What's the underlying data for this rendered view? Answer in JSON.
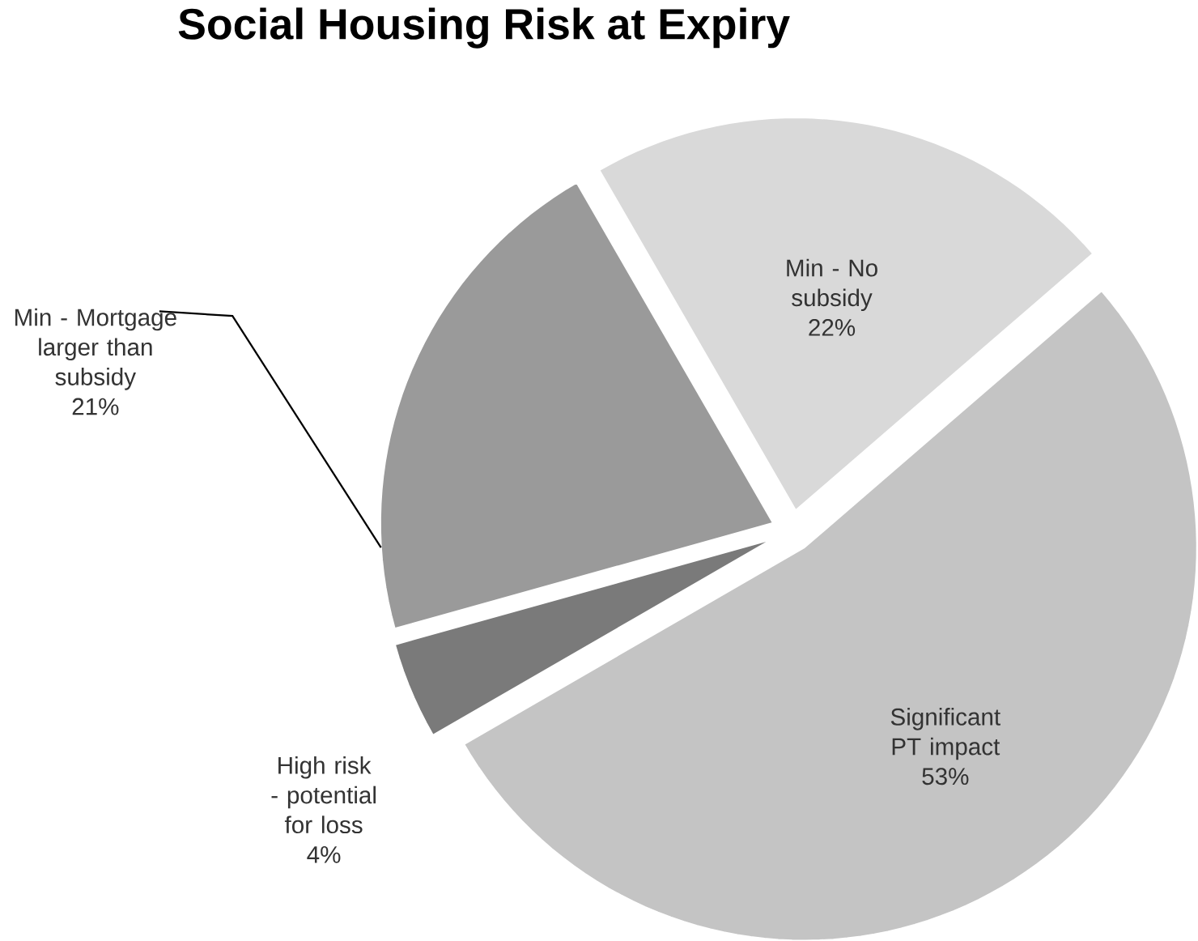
{
  "chart_data": {
    "type": "pie",
    "title": "Social Housing Risk at Expiry",
    "categories": [
      "Min - No subsidy",
      "Significant PT impact",
      "High risk - potential for loss",
      "Min - Mortgage larger than subsidy"
    ],
    "values": [
      22,
      53,
      4,
      21
    ],
    "value_labels": [
      "22%",
      "53%",
      "4%",
      "21%"
    ],
    "colors": [
      "#d9d9d9",
      "#c4c4c4",
      "#7a7a7a",
      "#9a9a9a"
    ]
  }
}
